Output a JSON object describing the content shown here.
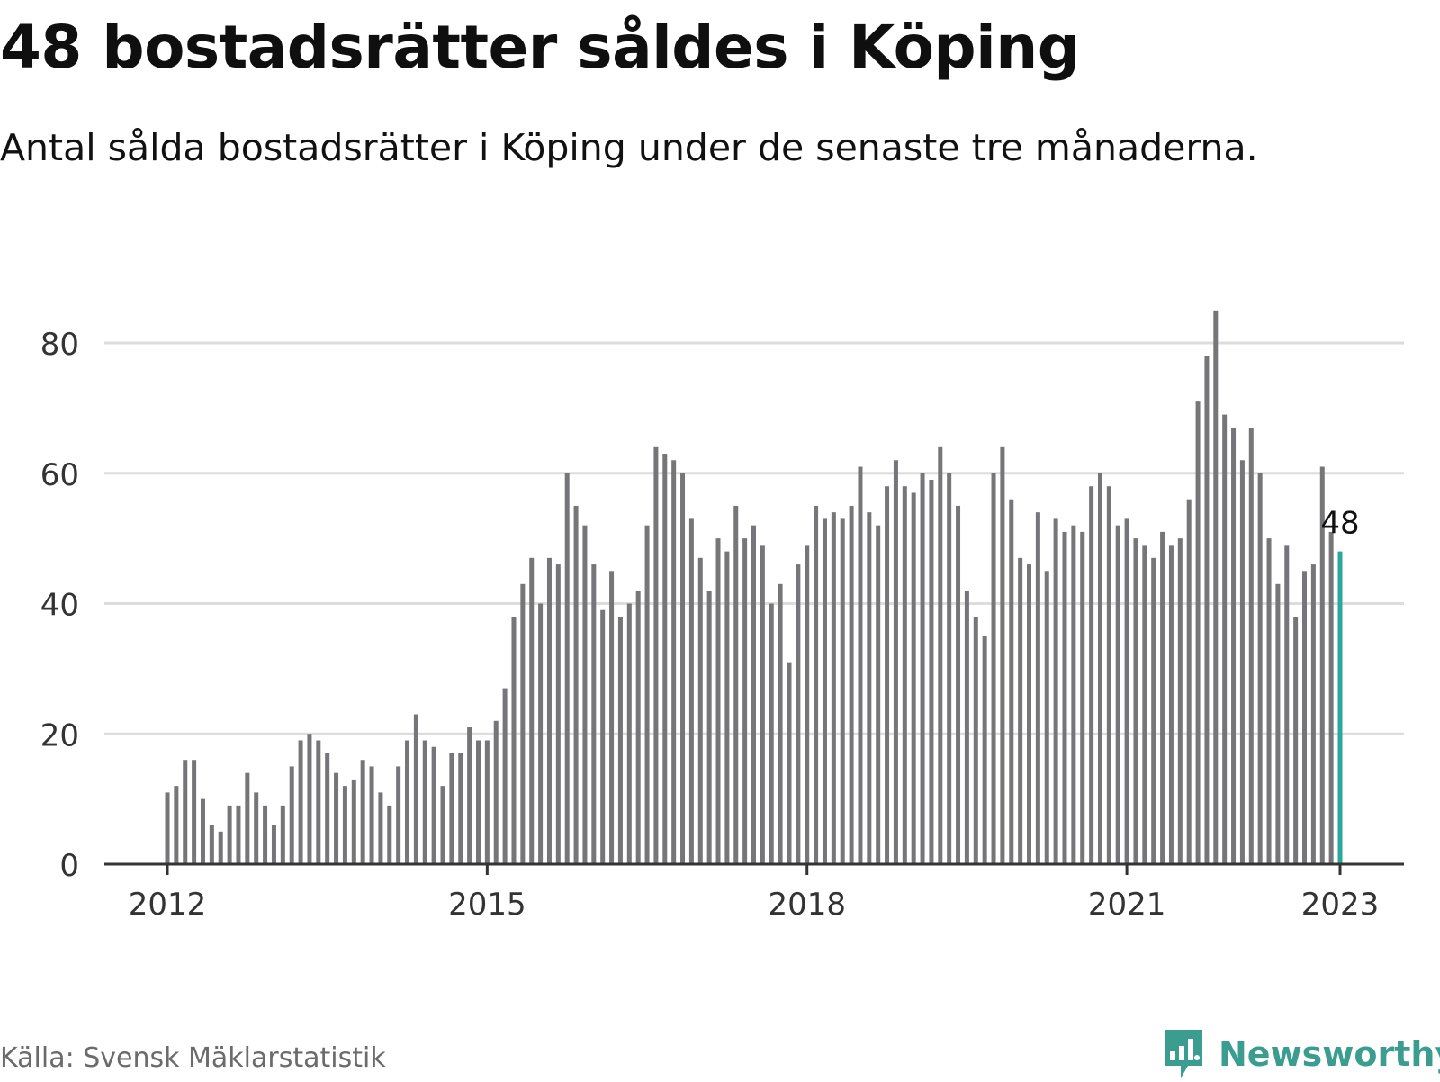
{
  "title": "48 bostadsrätter såldes i Köping",
  "subtitle": "Antal sålda bostadsrätter i Köping under de senaste tre månaderna.",
  "source": "Källa: Svensk Mäklarstatistik",
  "brand": {
    "name": "Newsworthy",
    "icon": "newsworthy-logo-icon",
    "color": "#3a9d8f"
  },
  "colors": {
    "bar": "#75757a",
    "highlight": "#2aa89a",
    "grid": "#dddddd",
    "axis": "#333333"
  },
  "chart_data": {
    "type": "bar",
    "x_start": "2012-01",
    "x_end": "2023-01",
    "xticks": [
      "2012",
      "2015",
      "2018",
      "2021",
      "2023"
    ],
    "yticks": [
      0,
      20,
      40,
      60,
      80
    ],
    "ylim": [
      0,
      85
    ],
    "grid": true,
    "highlight_label": "48",
    "values": [
      11,
      12,
      16,
      16,
      10,
      6,
      5,
      9,
      9,
      14,
      11,
      9,
      6,
      9,
      15,
      19,
      20,
      19,
      17,
      14,
      12,
      13,
      16,
      15,
      11,
      9,
      15,
      19,
      23,
      19,
      18,
      12,
      17,
      17,
      21,
      19,
      19,
      22,
      27,
      38,
      43,
      47,
      40,
      47,
      46,
      60,
      55,
      52,
      46,
      39,
      45,
      38,
      40,
      42,
      52,
      64,
      63,
      62,
      60,
      53,
      47,
      42,
      50,
      48,
      55,
      50,
      52,
      49,
      40,
      43,
      31,
      46,
      49,
      55,
      53,
      54,
      53,
      55,
      61,
      54,
      52,
      58,
      62,
      58,
      57,
      60,
      59,
      64,
      60,
      55,
      42,
      38,
      35,
      60,
      64,
      56,
      47,
      46,
      54,
      45,
      53,
      51,
      52,
      51,
      58,
      60,
      58,
      52,
      53,
      50,
      49,
      47,
      51,
      49,
      50,
      56,
      71,
      78,
      85,
      69,
      67,
      62,
      67,
      60,
      50,
      43,
      49,
      38,
      45,
      46,
      61,
      51,
      48
    ]
  }
}
